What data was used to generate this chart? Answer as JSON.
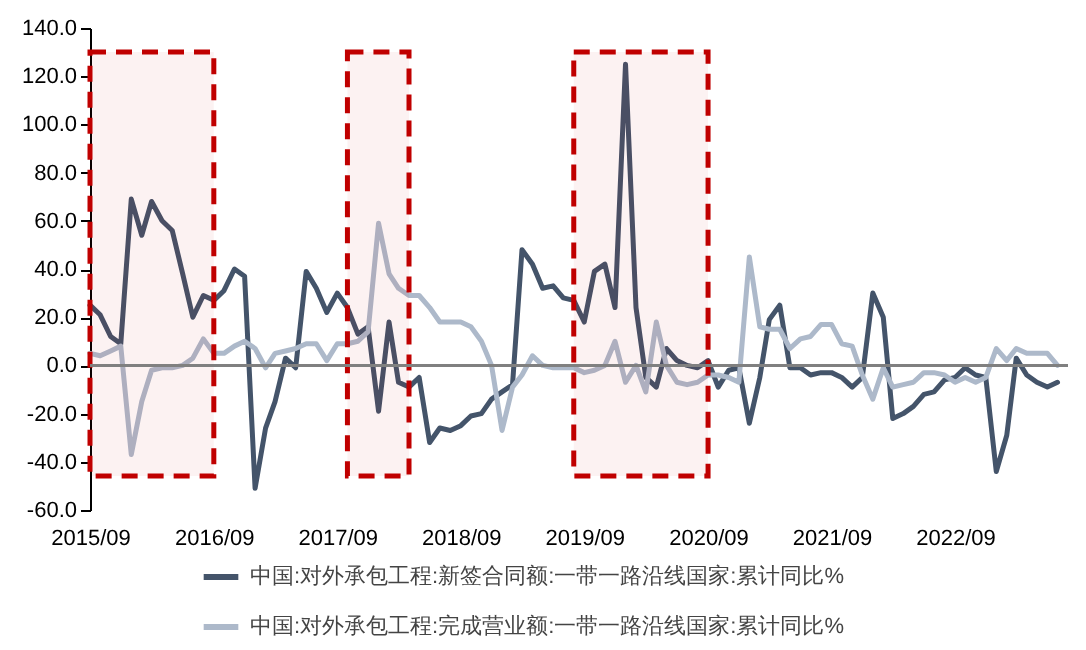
{
  "chart_data": {
    "type": "line",
    "x": [
      "2015-09",
      "2015-10",
      "2015-11",
      "2015-12",
      "2016-01",
      "2016-02",
      "2016-03",
      "2016-04",
      "2016-05",
      "2016-06",
      "2016-07",
      "2016-08",
      "2016-09",
      "2016-10",
      "2016-11",
      "2016-12",
      "2017-01",
      "2017-02",
      "2017-03",
      "2017-04",
      "2017-05",
      "2017-06",
      "2017-07",
      "2017-08",
      "2017-09",
      "2017-10",
      "2017-11",
      "2017-12",
      "2018-01",
      "2018-02",
      "2018-03",
      "2018-04",
      "2018-05",
      "2018-06",
      "2018-07",
      "2018-08",
      "2018-09",
      "2018-10",
      "2018-11",
      "2018-12",
      "2019-01",
      "2019-02",
      "2019-03",
      "2019-04",
      "2019-05",
      "2019-06",
      "2019-07",
      "2019-08",
      "2019-09",
      "2019-10",
      "2019-11",
      "2019-12",
      "2020-01",
      "2020-02",
      "2020-03",
      "2020-04",
      "2020-05",
      "2020-06",
      "2020-07",
      "2020-08",
      "2020-09",
      "2020-10",
      "2020-11",
      "2020-12",
      "2021-01",
      "2021-02",
      "2021-03",
      "2021-04",
      "2021-05",
      "2021-06",
      "2021-07",
      "2021-08",
      "2021-09",
      "2021-10",
      "2021-11",
      "2021-12",
      "2022-01",
      "2022-02",
      "2022-03",
      "2022-04",
      "2022-05",
      "2022-06",
      "2022-07",
      "2022-08",
      "2022-09",
      "2022-10",
      "2022-11",
      "2022-12",
      "2023-01",
      "2023-02",
      "2023-03",
      "2023-04",
      "2023-05",
      "2023-06",
      "2023-07"
    ],
    "series": [
      {
        "name": "中国:对外承包工程:新签合同额:一带一路沿线国家:累计同比%",
        "color": "#44546a",
        "values": [
          25,
          21,
          12,
          9,
          69,
          54,
          68,
          60,
          56,
          38,
          20,
          29,
          27,
          31,
          40,
          37,
          -51,
          -26,
          -15,
          3,
          -1,
          39,
          32,
          22,
          30,
          24,
          13,
          16,
          -19,
          18,
          -7,
          -9,
          -5,
          -32,
          -26,
          -27,
          -25,
          -21,
          -20,
          -14,
          -11,
          -8,
          48,
          42,
          32,
          33,
          28,
          27,
          18,
          39,
          42,
          24,
          125,
          24,
          -5,
          -9,
          7,
          2,
          0,
          -1,
          2,
          -9,
          -2,
          -1,
          -24,
          -5,
          19,
          25,
          -1,
          -1,
          -4,
          -3,
          -3,
          -5,
          -9,
          -5,
          30,
          20,
          -22,
          -20,
          -17,
          -12,
          -11,
          -6,
          -5,
          -1,
          -4,
          -5,
          -44,
          -29,
          3,
          -4,
          -7,
          -9,
          -7
        ]
      },
      {
        "name": "中国:对外承包工程:完成营业额:一带一路沿线国家:累计同比%",
        "color": "#adb9ca",
        "values": [
          5,
          4,
          6,
          8,
          -37,
          -15,
          -2,
          -1,
          -1,
          0,
          3,
          11,
          5,
          5,
          8,
          10,
          7,
          -1,
          5,
          6,
          7,
          9,
          9,
          2,
          9,
          9,
          10,
          14,
          59,
          38,
          32,
          29,
          29,
          24,
          18,
          18,
          18,
          16,
          10,
          0,
          -27,
          -9,
          -4,
          4,
          0,
          -1,
          -1,
          -1,
          -3,
          -2,
          0,
          10,
          -7,
          0,
          -11,
          18,
          0,
          -7,
          -8,
          -7,
          -4,
          -4,
          -5,
          -7,
          45,
          16,
          15,
          15,
          7,
          11,
          12,
          17,
          17,
          9,
          8,
          -4,
          -14,
          -1,
          -9,
          -8,
          -7,
          -3,
          -3,
          -4,
          -7,
          -5,
          -7,
          -5,
          7,
          2,
          7,
          5,
          5,
          5,
          0
        ]
      }
    ],
    "xlim": [
      "2015-09",
      "2023-08"
    ],
    "xticks": [
      {
        "value": "2015-09",
        "label": "2015/09"
      },
      {
        "value": "2016-09",
        "label": "2016/09"
      },
      {
        "value": "2017-09",
        "label": "2017/09"
      },
      {
        "value": "2018-09",
        "label": "2018/09"
      },
      {
        "value": "2019-09",
        "label": "2019/09"
      },
      {
        "value": "2020-09",
        "label": "2020/09"
      },
      {
        "value": "2021-09",
        "label": "2021/09"
      },
      {
        "value": "2022-09",
        "label": "2022/09"
      }
    ],
    "ylim": [
      -60,
      140
    ],
    "yticks": [
      {
        "value": -60,
        "label": "-60.0"
      },
      {
        "value": -40,
        "label": "-40.0"
      },
      {
        "value": -20,
        "label": "-20.0"
      },
      {
        "value": 0,
        "label": "0.0"
      },
      {
        "value": 20,
        "label": "20.0"
      },
      {
        "value": 40,
        "label": "40.0"
      },
      {
        "value": 60,
        "label": "60.0"
      },
      {
        "value": 80,
        "label": "80.0"
      },
      {
        "value": 100,
        "label": "100.0"
      },
      {
        "value": 120,
        "label": "120.0"
      },
      {
        "value": 140,
        "label": "140.0"
      }
    ],
    "ref_lines": [
      {
        "axis": "y",
        "value": 0,
        "color": "#808080"
      }
    ],
    "bands": [
      {
        "axis": "x",
        "from": "2015-09",
        "to": "2016-09",
        "color": "#c00000"
      },
      {
        "axis": "x",
        "from": "2017-10",
        "to": "2018-04",
        "color": "#c00000"
      },
      {
        "axis": "x",
        "from": "2019-08",
        "to": "2020-09",
        "color": "#c00000"
      }
    ],
    "legend": "bottom",
    "line_style": "solid"
  }
}
